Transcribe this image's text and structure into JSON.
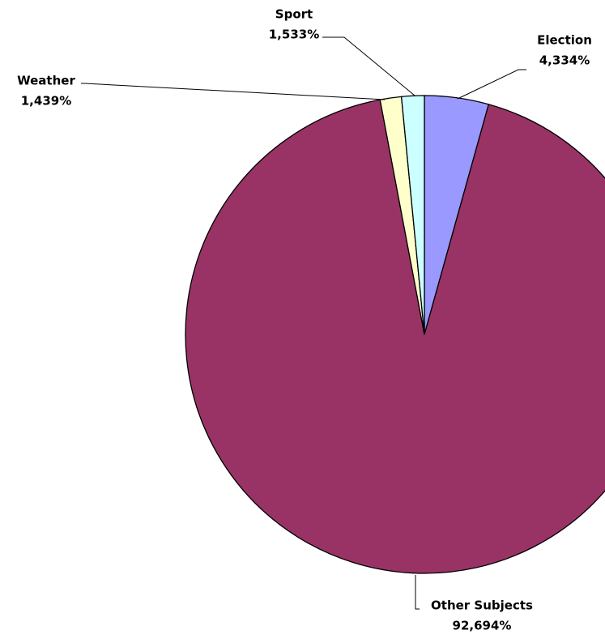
{
  "chart_data": {
    "type": "pie",
    "categories": [
      "Election",
      "Other Subjects",
      "Weather",
      "Sport"
    ],
    "values": [
      4.334,
      92.694,
      1.439,
      1.533
    ],
    "value_labels": [
      "4,334%",
      "92,694%",
      "1,439%",
      "1,533%"
    ],
    "colors": [
      "#9999ff",
      "#993366",
      "#ffffcc",
      "#ccffff"
    ]
  }
}
